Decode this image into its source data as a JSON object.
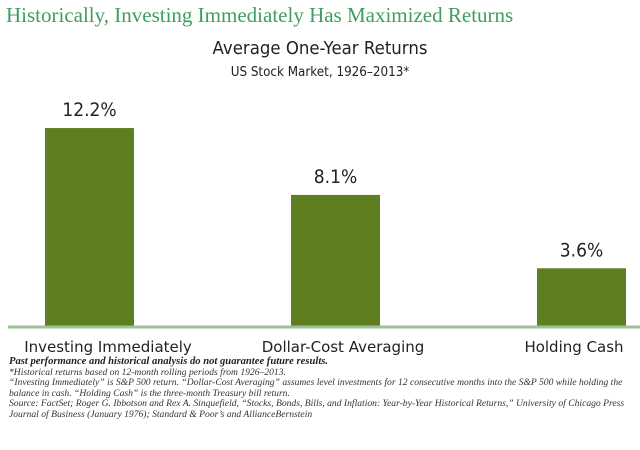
{
  "headline": "Historically, Investing Immediately Has Maximized Returns",
  "colors": {
    "headline": "#3f9e5f",
    "bar": "#5d7f1f",
    "axis": "#9ec09a"
  },
  "chart_data": {
    "type": "bar",
    "title": "Average One-Year Returns",
    "subtitle": "US Stock Market, 1926–2013*",
    "categories": [
      "Investing Immediately",
      "Dollar-Cost Averaging",
      "Holding Cash"
    ],
    "values": [
      12.2,
      8.1,
      3.6
    ],
    "data_labels": [
      "12.2%",
      "8.1%",
      "3.6%"
    ],
    "xlabel": "",
    "ylabel": "",
    "ylim": [
      0,
      13
    ],
    "grid": false,
    "legend": "none"
  },
  "footnotes": {
    "disclaimer": "Past performance and historical analysis do not guarantee future results.",
    "note1": "*Historical returns based on 12-month rolling periods from 1926–2013.",
    "note2": "“Investing Immediately” is S&P 500 return. “Dollar-Cost Averaging” assumes level investments for 12 consecutive months into the S&P 500 while holding the balance in cash. “Holding Cash” is the three-month Treasury bill return.",
    "source": "Source: FactSet; Roger G. Ibbotson and Rex A. Sinquefield, “Stocks, Bonds, Bills, and Inflation: Year-by-Year Historical Returns,” University of Chicago Press Journal of Business (January 1976); Standard & Poor’s and AllianceBernstein"
  }
}
